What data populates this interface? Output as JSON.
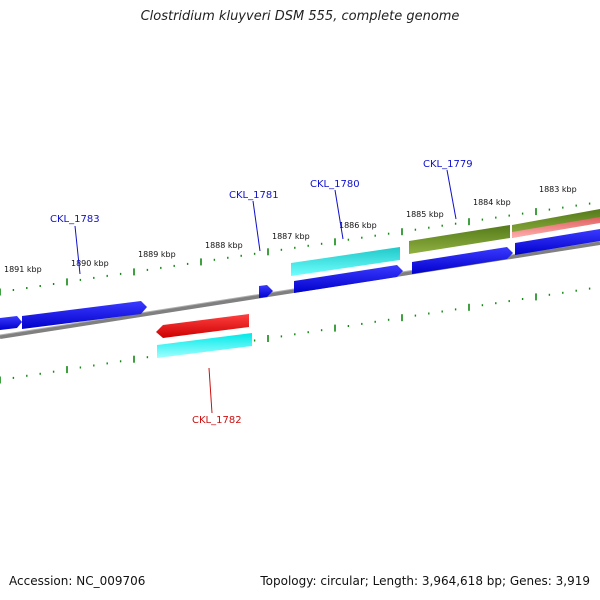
{
  "title": "Clostridium kluyveri DSM 555, complete genome",
  "footer": {
    "accession": "Accession: NC_009706",
    "summary": "Topology: circular; Length: 3,964,618 bp; Genes: 3,919"
  },
  "ticks": [
    "1891 kbp",
    "1890 kbp",
    "1889 kbp",
    "1888 kbp",
    "1887 kbp",
    "1886 kbp",
    "1885 kbp",
    "1884 kbp",
    "1883 kbp"
  ],
  "gene_labels": [
    {
      "text": "CKL_1783",
      "color": "#1010cc"
    },
    {
      "text": "CKL_1781",
      "color": "#1010cc"
    },
    {
      "text": "CKL_1780",
      "color": "#1010cc"
    },
    {
      "text": "CKL_1779",
      "color": "#1010cc"
    },
    {
      "text": "CKL_1782",
      "color": "#cc1010"
    }
  ],
  "colors": {
    "forward_cds": "#0000ee",
    "reverse_cds": "#ee0000",
    "forward_feature_cyan": "#00cccc",
    "reverse_feature_cyan": "#00ffff",
    "olive_feature": "#6b8e23",
    "pink_feature": "#f08080",
    "backbone": "#808080",
    "tick_green": "#118811"
  }
}
